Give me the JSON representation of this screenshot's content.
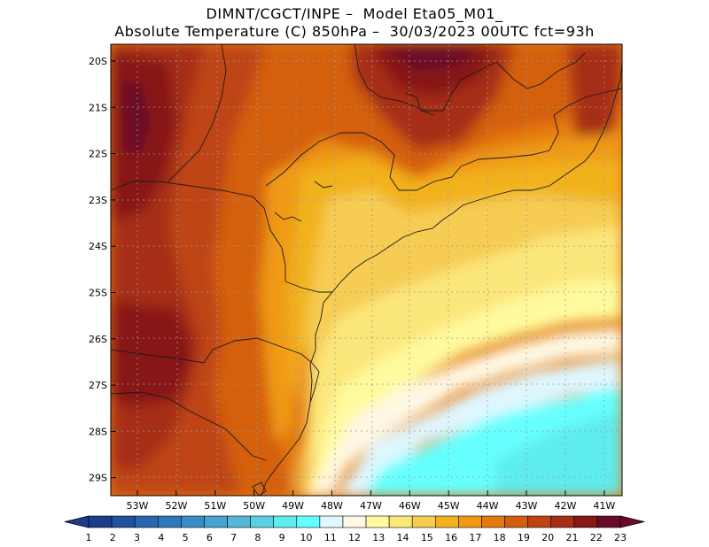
{
  "header": {
    "line1": "DIMNT/CGCT/INPE –  Model Eta05_M01_",
    "line2": "Absolute Temperature (C) 850hPa –  30/03/2023 00UTC fct=93h"
  },
  "map": {
    "region": "Southern and Southeastern Brazil",
    "lat_labels": [
      "20S",
      "21S",
      "22S",
      "23S",
      "24S",
      "25S",
      "26S",
      "27S",
      "28S",
      "29S"
    ],
    "lon_labels": [
      "53W",
      "52W",
      "51W",
      "50W",
      "49W",
      "48W",
      "47W",
      "46W",
      "45W",
      "44W",
      "43W",
      "42W",
      "41W"
    ],
    "grid": "dotted"
  },
  "colorbar": {
    "values": [
      "1",
      "2",
      "3",
      "4",
      "5",
      "6",
      "7",
      "8",
      "9",
      "10",
      "11",
      "12",
      "13",
      "14",
      "15",
      "16",
      "17",
      "18",
      "19",
      "20",
      "21",
      "22",
      "23"
    ],
    "colors": [
      "#1e3c8c",
      "#23519f",
      "#2a66b0",
      "#3078bc",
      "#3b8cc6",
      "#47a2cf",
      "#55b6d6",
      "#5bd0e2",
      "#5eecee",
      "#66ffff",
      "#dff7ff",
      "#fff8e4",
      "#fffa9e",
      "#fbe67a",
      "#f6cc52",
      "#f2b21e",
      "#f09a12",
      "#e37a10",
      "#d45e10",
      "#bf4414",
      "#a62e14",
      "#871818",
      "#6a0a28"
    ]
  }
}
